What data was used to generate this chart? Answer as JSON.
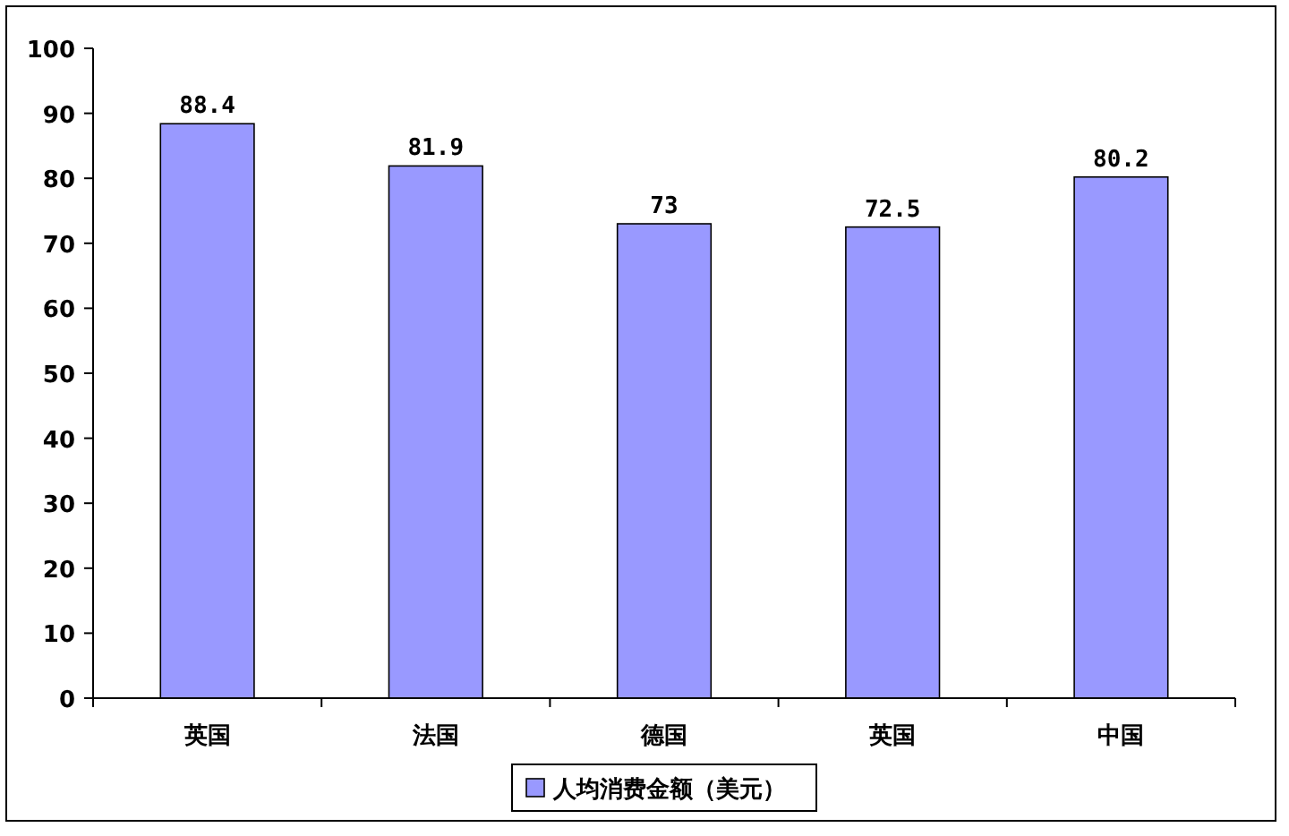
{
  "chart_data": {
    "type": "bar",
    "categories": [
      "英国",
      "法国",
      "德国",
      "英国",
      "中国"
    ],
    "series": [
      {
        "name": "人均消费金额（美元）",
        "color": "#9999ff",
        "values": [
          88.4,
          81.9,
          73,
          72.5,
          80.2
        ]
      }
    ],
    "ylim": [
      0,
      100
    ],
    "yticks": [
      0,
      10,
      20,
      30,
      40,
      50,
      60,
      70,
      80,
      90,
      100
    ],
    "data_labels": true,
    "legend": "bottom"
  }
}
